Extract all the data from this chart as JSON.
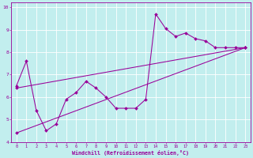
{
  "xlabel": "Windchill (Refroidissement éolien,°C)",
  "xlim": [
    -0.5,
    23.5
  ],
  "ylim": [
    4,
    10.2
  ],
  "xticks": [
    0,
    1,
    2,
    3,
    4,
    5,
    6,
    7,
    8,
    9,
    10,
    11,
    12,
    13,
    14,
    15,
    16,
    17,
    18,
    19,
    20,
    21,
    22,
    23
  ],
  "yticks": [
    4,
    5,
    6,
    7,
    8,
    9,
    10
  ],
  "bg_color": "#c2eeee",
  "line_color": "#990099",
  "grid_color": "#aadddd",
  "series1_x": [
    0,
    1,
    2,
    3,
    4,
    5,
    6,
    7,
    8,
    9,
    10,
    11,
    12,
    13,
    14,
    15,
    16,
    17,
    18,
    19,
    20,
    21,
    22,
    23
  ],
  "series1_y": [
    6.5,
    7.6,
    5.4,
    4.5,
    4.8,
    5.9,
    6.2,
    6.7,
    6.4,
    6.0,
    5.5,
    5.5,
    5.5,
    5.9,
    9.7,
    9.05,
    8.7,
    8.85,
    8.6,
    8.5,
    8.2,
    8.2,
    8.2,
    8.2
  ],
  "series2_x": [
    0,
    23
  ],
  "series2_y": [
    4.4,
    8.2
  ],
  "series3_x": [
    0,
    23
  ],
  "series3_y": [
    6.4,
    8.2
  ]
}
